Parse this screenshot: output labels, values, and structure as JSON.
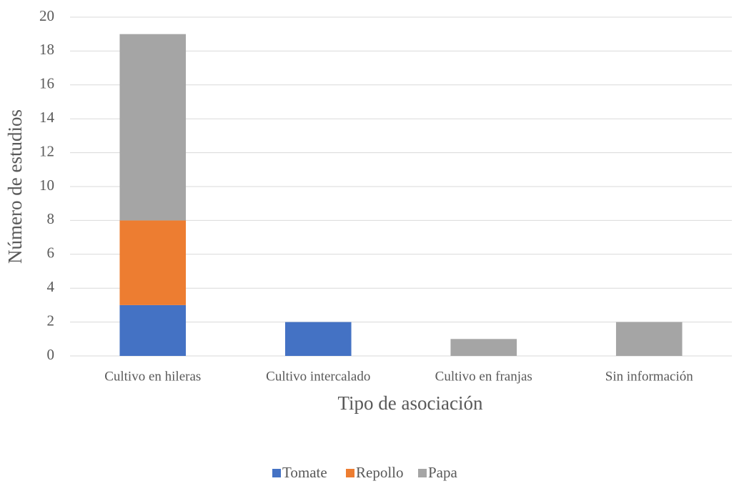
{
  "chart_data": {
    "type": "stacked_bar",
    "categories": [
      "Cultivo en hileras",
      "Cultivo intercalado",
      "Cultivo en franjas",
      "Sin información"
    ],
    "series": [
      {
        "name": "Tomate",
        "color": "#4472c4",
        "values": [
          3,
          2,
          0,
          0
        ]
      },
      {
        "name": "Repollo",
        "color": "#ed7d31",
        "values": [
          5,
          0,
          0,
          0
        ]
      },
      {
        "name": "Papa",
        "color": "#a5a5a5",
        "values": [
          11,
          0,
          1,
          2
        ]
      }
    ],
    "xlabel": "Tipo de asociación",
    "ylabel": "Número de estudios",
    "ylim": [
      0,
      20
    ],
    "yticks": [
      0,
      2,
      4,
      6,
      8,
      10,
      12,
      14,
      16,
      18,
      20
    ],
    "grid": true,
    "legend": "bottom"
  }
}
